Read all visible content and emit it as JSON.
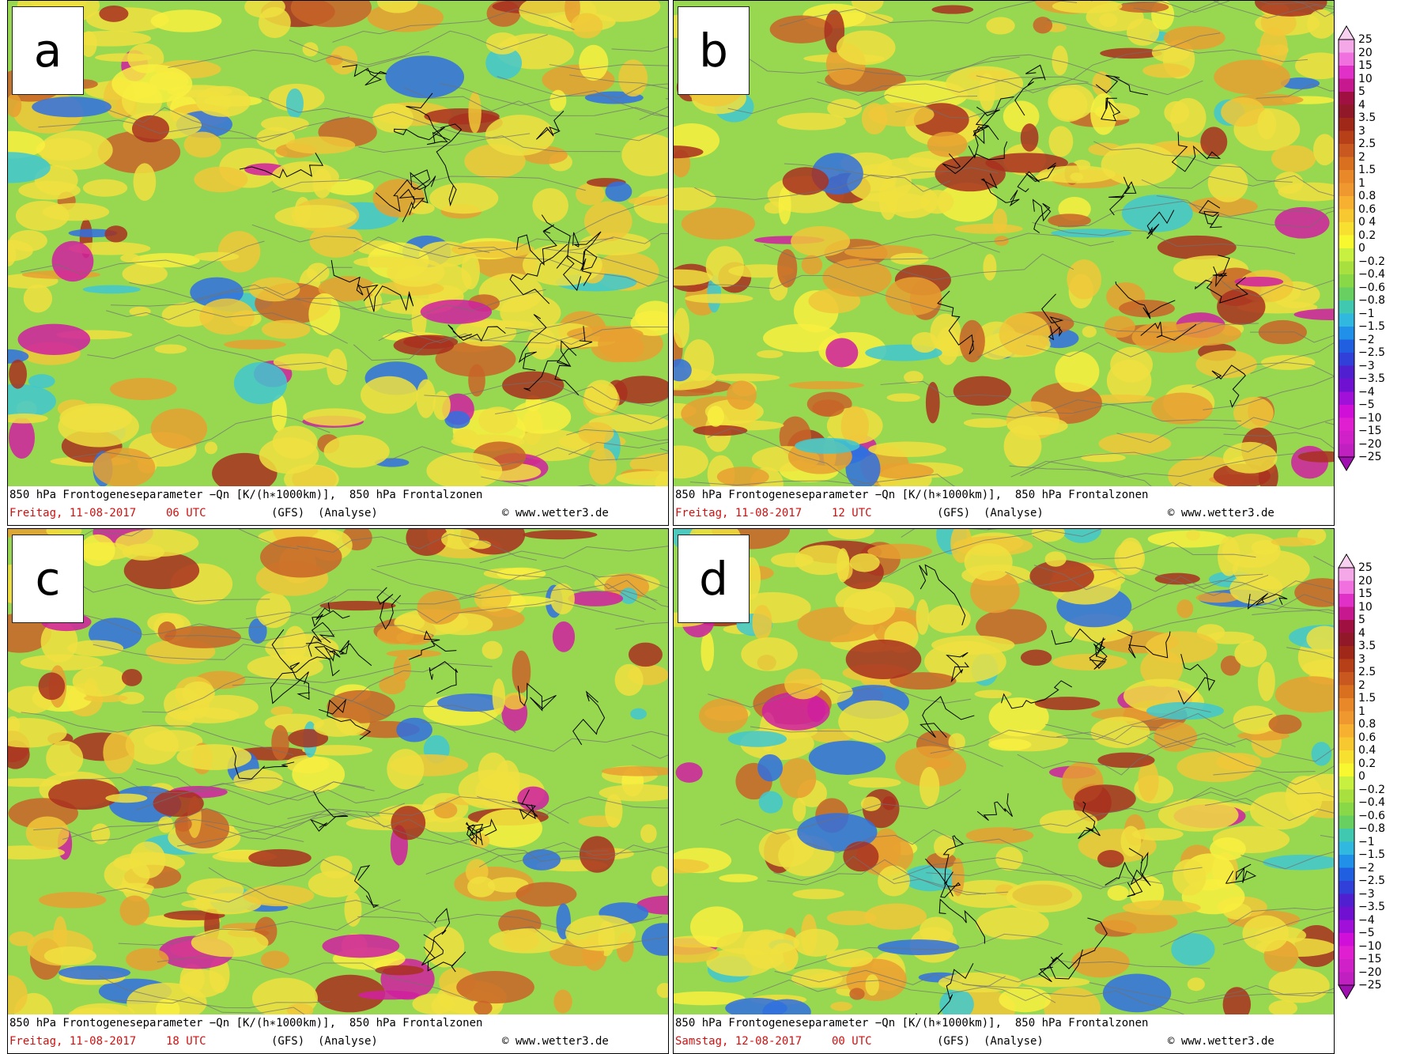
{
  "panels": [
    {
      "label": "a",
      "caption": {
        "title": "850 hPa Frontogeneseparameter −Qn [K/(h∗1000km)],  850 hPa Frontalzonen",
        "date": "Freitag, 11-08-2017",
        "time": "06 UTC",
        "model": "(GFS)",
        "run": "(Analyse)",
        "credit": "© www.wetter3.de"
      }
    },
    {
      "label": "b",
      "caption": {
        "title": "850 hPa Frontogeneseparameter −Qn [K/(h∗1000km)],  850 hPa Frontalzonen",
        "date": "Freitag, 11-08-2017",
        "time": "12 UTC",
        "model": "(GFS)",
        "run": "(Analyse)",
        "credit": "© www.wetter3.de"
      }
    },
    {
      "label": "c",
      "caption": {
        "title": "850 hPa Frontogeneseparameter −Qn [K/(h∗1000km)],  850 hPa Frontalzonen",
        "date": "Freitag, 11-08-2017",
        "time": "18 UTC",
        "model": "(GFS)",
        "run": "(Analyse)",
        "credit": "© www.wetter3.de"
      }
    },
    {
      "label": "d",
      "caption": {
        "title": "850 hPa Frontogeneseparameter −Qn [K/(h∗1000km)],  850 hPa Frontalzonen",
        "date": "Samstag, 12-08-2017",
        "time": "00 UTC",
        "model": "(GFS)",
        "run": "(Analyse)",
        "credit": "© www.wetter3.de"
      }
    }
  ],
  "colorbars": [
    {
      "labels": [
        "25",
        "20",
        "15",
        "10",
        "5",
        "4",
        "3.5",
        "3",
        "2.5",
        "2",
        "1.5",
        "1",
        "0.8",
        "0.6",
        "0 4",
        "0.2",
        "0",
        "−0.2",
        "−0.4",
        "−0.6",
        "−0.8",
        "−1",
        "−1.5",
        "−2",
        "−2.5",
        "−3",
        "−3.5",
        "−4",
        "−5",
        "−10",
        "−15",
        "−20",
        "−25"
      ]
    },
    {
      "labels": [
        "25",
        "20",
        "15",
        "10",
        "5",
        "4",
        "3.5",
        "3",
        "2.5",
        "2",
        "1.5",
        "1",
        "0.8",
        "0.6",
        "0.4",
        "0.2",
        "0",
        "−0.2",
        "−0.4",
        "−0.6",
        "−0.8",
        "−1",
        "−1.5",
        "−2",
        "−2.5",
        "−3",
        "−3.5",
        "−4",
        "−5",
        "−10",
        "−15",
        "−20",
        "−25"
      ]
    }
  ],
  "colorbar_colors": [
    "#f8d0f0",
    "#f4a8e8",
    "#f070e0",
    "#e030c8",
    "#c81890",
    "#a01040",
    "#901828",
    "#a02818",
    "#b84018",
    "#c85820",
    "#d87020",
    "#e88828",
    "#f09830",
    "#f8b030",
    "#f8c830",
    "#f8e030",
    "#f8f830",
    "#c8f040",
    "#a8e040",
    "#88d848",
    "#68d060",
    "#40c8b0",
    "#30b8e0",
    "#2090e8",
    "#2060e0",
    "#3040d8",
    "#5020d0",
    "#7010d0",
    "#a010d8",
    "#d010d8",
    "#e020d0",
    "#d020c8",
    "#c020c0",
    "#a010b0"
  ]
}
